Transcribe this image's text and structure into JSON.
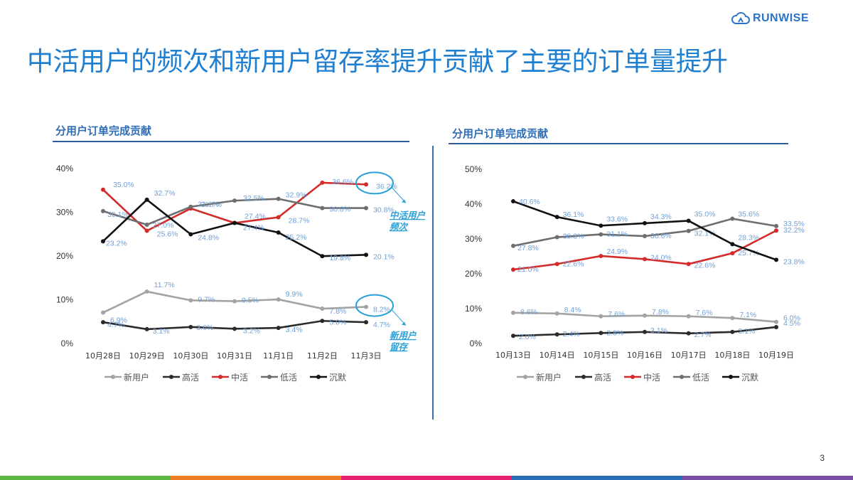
{
  "brand": {
    "name": "RUNWISE",
    "logo_icon": "cloud-logo-icon"
  },
  "title": "中活用户的频次和新用户留存率提升贡献了主要的订单量提升",
  "page_number": "3",
  "colors": {
    "title": "#1f7fd0",
    "新用户": "#a3a3a3",
    "高活": "#2b2b2b",
    "中活": "#d42a2a",
    "低活": "#6e6e6e",
    "沉默": "#111111",
    "label": "#6f9fd6",
    "annotation": "#2aa0d8",
    "bottom_bar": [
      "#5bb542",
      "#ef7d22",
      "#e5206f",
      "#2a6fb5",
      "#7a4ea3"
    ]
  },
  "chart_data": [
    {
      "type": "line",
      "title": "分用户订单完成贡献",
      "categories": [
        "10月28日",
        "10月29日",
        "10月30日",
        "10月31日",
        "11月1日",
        "11月2日",
        "11月3日"
      ],
      "y_ticks": [
        "0%",
        "10%",
        "20%",
        "30%",
        "40%"
      ],
      "ylim": [
        0,
        40
      ],
      "grid": false,
      "legend_position": "bottom",
      "series": [
        {
          "name": "新用户",
          "values": [
            6.9,
            11.7,
            9.7,
            9.5,
            9.9,
            7.8,
            8.2
          ],
          "labels": [
            "6.9%",
            "11.7%",
            "9.7%",
            "9.5%",
            "9.9%",
            "7.8%",
            "8.2%"
          ]
        },
        {
          "name": "高活",
          "values": [
            4.7,
            3.1,
            3.6,
            3.2,
            3.4,
            5.0,
            4.7
          ],
          "labels": [
            "4.7%",
            "3.1%",
            "3.6%",
            "3.2%",
            "3.4%",
            "5.0%",
            "4.7%"
          ]
        },
        {
          "name": "中活",
          "values": [
            35.0,
            25.6,
            30.7,
            27.4,
            28.7,
            36.6,
            36.2
          ],
          "labels": [
            "35.0%",
            "25.6%",
            "30.7%",
            "27.4%",
            "28.7%",
            "36.6%",
            "36.2%"
          ]
        },
        {
          "name": "低活",
          "values": [
            30.1,
            27.0,
            31.1,
            32.5,
            32.9,
            30.8,
            30.8
          ],
          "labels": [
            "30.1%",
            "27.0%",
            "31.1%",
            "32.5%",
            "32.9%",
            "30.8%",
            "30.8%"
          ]
        },
        {
          "name": "沉默",
          "values": [
            23.2,
            32.7,
            24.8,
            27.4,
            25.2,
            19.8,
            20.1
          ],
          "labels": [
            "23.2%",
            "32.7%",
            "24.8%",
            "27.4%",
            "25.2%",
            "19.8%",
            "20.1%"
          ]
        }
      ],
      "annotations": [
        "中活用户频次",
        "新用户留存"
      ]
    },
    {
      "type": "line",
      "title": "分用户订单完成贡献",
      "categories": [
        "10月13日",
        "10月14日",
        "10月15日",
        "10月16日",
        "10月17日",
        "10月18日",
        "10月19日"
      ],
      "y_ticks": [
        "0%",
        "10%",
        "20%",
        "30%",
        "40%",
        "50%"
      ],
      "ylim": [
        0,
        50
      ],
      "grid": false,
      "legend_position": "bottom",
      "series": [
        {
          "name": "新用户",
          "values": [
            8.6,
            8.4,
            7.6,
            7.8,
            7.6,
            7.1,
            6.0
          ],
          "labels": [
            "8.6%",
            "8.4%",
            "7.6%",
            "7.8%",
            "7.6%",
            "7.1%",
            "6.0%"
          ]
        },
        {
          "name": "高活",
          "values": [
            2.0,
            2.4,
            2.8,
            3.1,
            2.7,
            3.1,
            4.5
          ],
          "labels": [
            "2.0%",
            "2.4%",
            "2.8%",
            "3.1%",
            "2.7%",
            "3.1%",
            "4.5%"
          ]
        },
        {
          "name": "中活",
          "values": [
            21.0,
            22.6,
            24.9,
            24.0,
            22.6,
            25.7,
            32.2
          ],
          "labels": [
            "21.0%",
            "22.6%",
            "24.9%",
            "24.0%",
            "22.6%",
            "25.7%",
            "32.2%"
          ]
        },
        {
          "name": "低活",
          "values": [
            27.8,
            30.3,
            31.1,
            30.6,
            32.1,
            35.6,
            33.5
          ],
          "labels": [
            "27.8%",
            "30.3%",
            "31.1%",
            "30.6%",
            "32.1%",
            "35.6%",
            "33.5%"
          ]
        },
        {
          "name": "沉默",
          "values": [
            40.6,
            36.1,
            33.6,
            34.3,
            35.0,
            28.3,
            23.8
          ],
          "labels": [
            "40.6%",
            "36.1%",
            "33.6%",
            "34.3%",
            "35.0%",
            "28.3%",
            "23.8%"
          ]
        }
      ]
    }
  ]
}
